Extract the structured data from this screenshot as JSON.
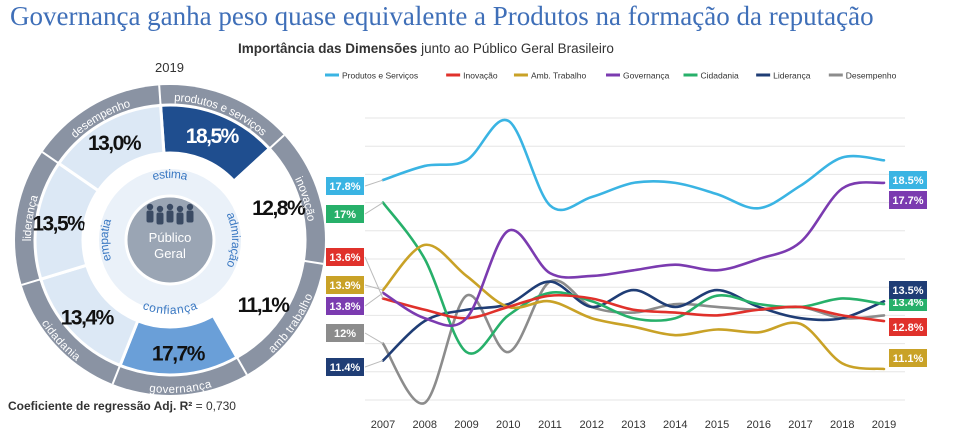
{
  "title": "Governança ganha peso quase equivalente a Produtos na formação da reputação",
  "subtitle_bold": "Importância das Dimensões",
  "subtitle_rest": " junto ao Público Geral Brasileiro",
  "donut": {
    "year": "2019",
    "center_line1": "Público",
    "center_line2": "Geral",
    "inner_labels": [
      "estima",
      "admiração",
      "confiança",
      "empatia"
    ],
    "segments": [
      {
        "key": "produtos",
        "outer_label": "produtos e serviços",
        "value": "18,5%",
        "fill": "#1f4e8f",
        "text_color": "#ffffff"
      },
      {
        "key": "inovacao",
        "outer_label": "inovação",
        "value": "12,8%",
        "fill": "#ffffff",
        "text_color": "#111111"
      },
      {
        "key": "amb_trabalho",
        "outer_label": "amb trabalho",
        "value": "11,1%",
        "fill": "#ffffff",
        "text_color": "#111111"
      },
      {
        "key": "governanca",
        "outer_label": "governança",
        "value": "17,7%",
        "fill": "#6a9fd8",
        "text_color": "#111111"
      },
      {
        "key": "cidadania",
        "outer_label": "cidadania",
        "value": "13,4%",
        "fill": "#dce8f5",
        "text_color": "#111111"
      },
      {
        "key": "lideranca",
        "outer_label": "liderança",
        "value": "13,5%",
        "fill": "#dce8f5",
        "text_color": "#111111"
      },
      {
        "key": "desempenho",
        "outer_label": "desempenho",
        "value": "13,0%",
        "fill": "#dce8f5",
        "text_color": "#111111"
      }
    ]
  },
  "footnote": "Coeficiente de regressão Adj. R² ",
  "footnote_value": "= 0,730",
  "chart_data": {
    "type": "line",
    "title": "Importância das Dimensões junto ao Público Geral Brasileiro",
    "x": [
      "2007",
      "2008",
      "2009",
      "2010",
      "2011",
      "2012",
      "2013",
      "2014",
      "2015",
      "2016",
      "2017",
      "2018",
      "2019"
    ],
    "ylim": [
      10,
      20
    ],
    "grid": "horizontal",
    "legend_position": "top",
    "series": [
      {
        "name": "Produtos e Serviços",
        "color": "#3ab4e3",
        "values": [
          17.8,
          18.3,
          18.5,
          19.9,
          16.9,
          17.2,
          17.7,
          17.7,
          17.3,
          16.8,
          17.6,
          18.6,
          18.5
        ],
        "start_label": "17.8%",
        "end_label": "18.5%"
      },
      {
        "name": "Inovação",
        "color": "#e0312b",
        "values": [
          13.6,
          13.2,
          12.9,
          13.3,
          13.7,
          13.6,
          13.2,
          13.1,
          13.0,
          13.2,
          13.3,
          13.0,
          12.8
        ],
        "start_label": "13.6%",
        "end_label": "12.8%"
      },
      {
        "name": "Amb. Trabalho",
        "color": "#c9a227",
        "values": [
          13.9,
          15.5,
          14.4,
          13.3,
          13.5,
          12.9,
          12.6,
          12.3,
          12.5,
          12.4,
          12.7,
          11.3,
          11.1
        ],
        "start_label": "13.9%",
        "end_label": "11.1%"
      },
      {
        "name": "Governança",
        "color": "#7b3bb0",
        "values": [
          13.8,
          12.9,
          12.9,
          16.0,
          14.5,
          14.4,
          14.6,
          14.8,
          14.6,
          15.0,
          15.6,
          17.5,
          17.7
        ],
        "start_label": "13.8%",
        "end_label": "17.7%"
      },
      {
        "name": "Cidadania",
        "color": "#27b06a",
        "values": [
          17.0,
          15.0,
          11.7,
          13.0,
          13.8,
          13.5,
          12.9,
          12.9,
          13.7,
          13.4,
          13.3,
          13.6,
          13.4
        ],
        "start_label": "17%",
        "end_label": "13.4%"
      },
      {
        "name": "Liderança",
        "color": "#1f3d75",
        "values": [
          11.4,
          12.8,
          13.2,
          13.4,
          14.2,
          13.3,
          13.9,
          13.3,
          13.9,
          13.3,
          12.9,
          12.9,
          13.5
        ],
        "start_label": "11.4%",
        "end_label": "13.5%"
      },
      {
        "name": "Desempenho",
        "color": "#8c8c8c",
        "values": [
          12.0,
          9.9,
          13.7,
          11.7,
          14.2,
          13.3,
          13.1,
          13.4,
          13.3,
          13.2,
          13.3,
          12.9,
          13.0
        ],
        "start_label": "12%",
        "end_label": null
      }
    ]
  }
}
